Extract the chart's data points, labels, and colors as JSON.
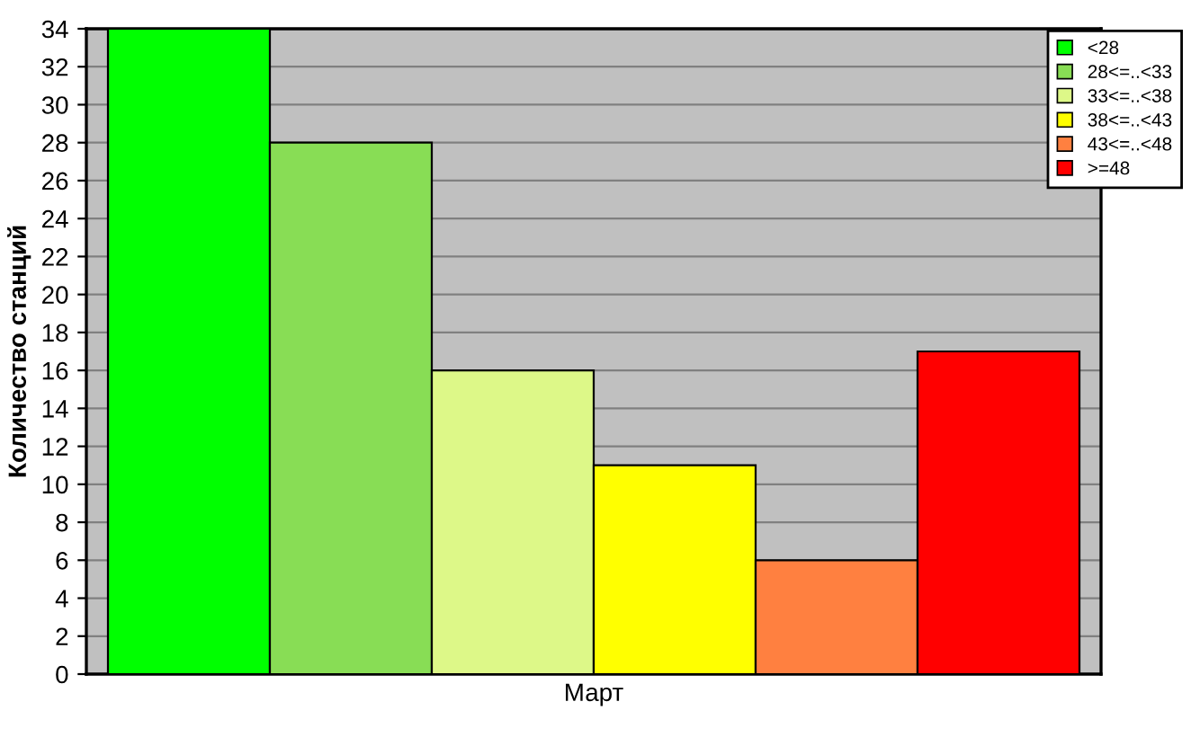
{
  "chart_data": {
    "type": "bar",
    "ylabel": "Количество станций",
    "categories": [
      "Март"
    ],
    "series": [
      {
        "name": "<28",
        "color": "#00ff00",
        "values": [
          34
        ]
      },
      {
        "name": "28<=..<33",
        "color": "#88dd55",
        "values": [
          28
        ]
      },
      {
        "name": "33<=..<38",
        "color": "#ddf888",
        "values": [
          16
        ]
      },
      {
        "name": "38<=..<43",
        "color": "#ffff00",
        "values": [
          11
        ]
      },
      {
        "name": "43<=..<48",
        "color": "#ff8040",
        "values": [
          6
        ]
      },
      {
        "name": ">=48",
        "color": "#ff0000",
        "values": [
          17
        ]
      }
    ],
    "ylim": [
      0,
      34
    ],
    "yticks": [
      0,
      2,
      4,
      6,
      8,
      10,
      12,
      14,
      16,
      18,
      20,
      22,
      24,
      26,
      28,
      30,
      32,
      34
    ],
    "grid": "y",
    "legend": "top right"
  }
}
